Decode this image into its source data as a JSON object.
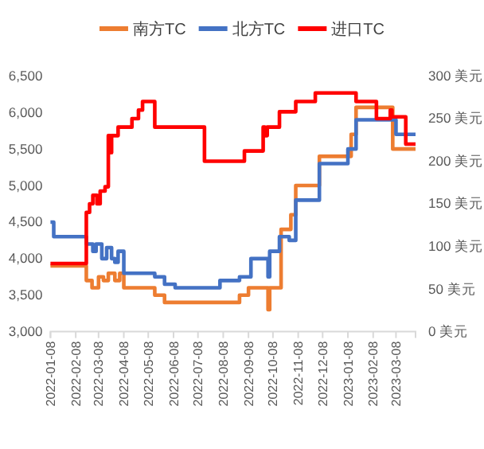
{
  "chart_data": {
    "type": "step",
    "legend": "top",
    "grid": false,
    "xlim": [
      "2022-01-08",
      "2023-04-01"
    ],
    "xticks": [
      {
        "value": "2022-01-08",
        "label": "2022-01-08"
      },
      {
        "value": "2022-02-08",
        "label": "2022-02-08"
      },
      {
        "value": "2022-03-08",
        "label": "2022-03-08"
      },
      {
        "value": "2022-04-08",
        "label": "2022-04-08"
      },
      {
        "value": "2022-05-08",
        "label": "2022-05-08"
      },
      {
        "value": "2022-06-08",
        "label": "2022-06-08"
      },
      {
        "value": "2022-07-08",
        "label": "2022-07-08"
      },
      {
        "value": "2022-08-08",
        "label": "2022-08-08"
      },
      {
        "value": "2022-09-08",
        "label": "2022-09-08"
      },
      {
        "value": "2022-10-08",
        "label": "2022-10-08"
      },
      {
        "value": "2022-11-08",
        "label": "2022-11-08"
      },
      {
        "value": "2022-12-08",
        "label": "2022-12-08"
      },
      {
        "value": "2023-01-08",
        "label": "2023-01-08"
      },
      {
        "value": "2023-02-08",
        "label": "2023-02-08"
      },
      {
        "value": "2023-03-08",
        "label": "2023-03-08"
      }
    ],
    "ylim": [
      3000,
      6500
    ],
    "yticks": [
      {
        "value": 3000,
        "label": "3,000"
      },
      {
        "value": 3500,
        "label": "3,500"
      },
      {
        "value": 4000,
        "label": "4,000"
      },
      {
        "value": 4500,
        "label": "4,500"
      },
      {
        "value": 5000,
        "label": "5,000"
      },
      {
        "value": 5500,
        "label": "5,500"
      },
      {
        "value": 6000,
        "label": "6,000"
      },
      {
        "value": 6500,
        "label": "6,500"
      }
    ],
    "y2lim": [
      0,
      300
    ],
    "y2ticks": [
      {
        "value": 0,
        "label": "0 美元"
      },
      {
        "value": 50,
        "label": "50 美元"
      },
      {
        "value": 100,
        "label": "100 美元"
      },
      {
        "value": 150,
        "label": "150 美元"
      },
      {
        "value": 200,
        "label": "200 美元"
      },
      {
        "value": 250,
        "label": "250 美元"
      },
      {
        "value": 300,
        "label": "300 美元"
      }
    ],
    "series": [
      {
        "name": "南方TC",
        "color": "#ed7d31",
        "x": [
          "2022-01-08",
          "2022-02-21",
          "2022-02-28",
          "2022-03-08",
          "2022-03-14",
          "2022-03-20",
          "2022-03-28",
          "2022-04-03",
          "2022-04-08",
          "2022-05-16",
          "2022-05-28",
          "2022-08-28",
          "2022-09-08",
          "2022-10-02",
          "2022-10-04",
          "2022-10-18",
          "2022-10-30",
          "2022-11-05",
          "2022-12-04",
          "2023-01-12",
          "2023-01-18",
          "2023-03-04",
          "2023-04-01"
        ],
        "values": [
          3900,
          3700,
          3600,
          3750,
          3700,
          3800,
          3700,
          3800,
          3600,
          3500,
          3400,
          3500,
          3600,
          3300,
          3600,
          4400,
          4600,
          5000,
          5400,
          5700,
          6070,
          5500,
          5500
        ]
      },
      {
        "name": "北方TC",
        "color": "#4472c4",
        "x": [
          "2022-01-08",
          "2022-01-12",
          "2022-02-21",
          "2022-03-01",
          "2022-03-05",
          "2022-03-12",
          "2022-03-18",
          "2022-03-24",
          "2022-03-28",
          "2022-04-01",
          "2022-04-08",
          "2022-05-16",
          "2022-05-28",
          "2022-06-10",
          "2022-08-04",
          "2022-08-28",
          "2022-09-11",
          "2022-10-02",
          "2022-10-04",
          "2022-10-16",
          "2022-10-28",
          "2022-11-05",
          "2022-12-04",
          "2023-01-08",
          "2023-01-18",
          "2023-03-08",
          "2023-04-01"
        ],
        "values": [
          4500,
          4300,
          4200,
          4100,
          4200,
          4000,
          4150,
          4000,
          3950,
          4100,
          3800,
          3750,
          3650,
          3600,
          3700,
          3750,
          4000,
          3750,
          4100,
          4300,
          4250,
          4800,
          5300,
          5500,
          5900,
          5700,
          5700
        ]
      },
      {
        "name": "进口TC",
        "color": "#ff0000",
        "axis": "y2",
        "x": [
          "2022-01-08",
          "2022-02-21",
          "2022-02-25",
          "2022-03-01",
          "2022-03-06",
          "2022-03-10",
          "2022-03-16",
          "2022-03-20",
          "2022-03-22",
          "2022-03-24",
          "2022-04-01",
          "2022-04-18",
          "2022-04-26",
          "2022-05-01",
          "2022-05-16",
          "2022-07-16",
          "2022-09-03",
          "2022-09-26",
          "2022-09-28",
          "2022-10-01",
          "2022-10-16",
          "2022-11-05",
          "2022-11-29",
          "2023-01-18",
          "2023-02-12",
          "2023-03-01",
          "2023-03-03",
          "2023-03-20",
          "2023-04-01"
        ],
        "values": [
          80,
          140,
          150,
          160,
          150,
          165,
          170,
          230,
          210,
          230,
          240,
          250,
          260,
          270,
          240,
          200,
          212,
          240,
          230,
          240,
          258,
          270,
          280,
          270,
          250,
          260,
          252,
          220,
          220
        ]
      }
    ]
  }
}
